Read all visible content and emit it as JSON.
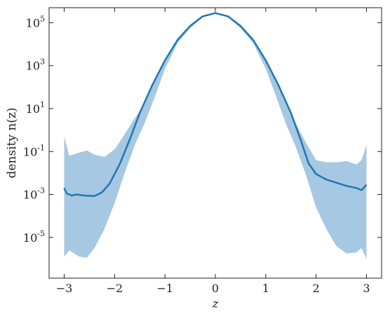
{
  "chart_data": {
    "type": "line",
    "title": "",
    "xlabel": "z",
    "ylabel": "density n(z)",
    "xlim": [
      -3.3,
      3.3
    ],
    "ylim_log10": [
      -6.9,
      5.7
    ],
    "yscale": "log",
    "grid": false,
    "legend": "none",
    "x_ticks": [
      -3,
      -2,
      -1,
      0,
      1,
      2,
      3
    ],
    "x_tick_labels": [
      "−3",
      "−2",
      "−1",
      "0",
      "1",
      "2",
      "3"
    ],
    "y_ticks_log10": [
      5,
      3,
      1,
      -1,
      -3,
      -5
    ],
    "y_tick_bases": [
      "10",
      "10",
      "10",
      "10",
      "10",
      "10"
    ],
    "y_tick_exponents": [
      "5",
      "3",
      "1",
      "-1",
      "-3",
      "-5"
    ],
    "colors": {
      "line": "#1f77b4",
      "band": "#a6c8e2"
    },
    "series": [
      {
        "values_log10": [
          [
            -3.0,
            -2.7
          ],
          [
            -2.95,
            -2.95
          ],
          [
            -2.85,
            -3.05
          ],
          [
            -2.75,
            -3.0
          ],
          [
            -2.6,
            -3.05
          ],
          [
            -2.4,
            -3.07
          ],
          [
            -2.25,
            -2.9
          ],
          [
            -2.1,
            -2.5
          ],
          [
            -1.9,
            -1.6
          ],
          [
            -1.7,
            -0.45
          ],
          [
            -1.5,
            0.8
          ],
          [
            -1.25,
            2.1
          ],
          [
            -1.0,
            3.25
          ],
          [
            -0.75,
            4.2
          ],
          [
            -0.5,
            4.85
          ],
          [
            -0.25,
            5.3
          ],
          [
            0.0,
            5.45
          ],
          [
            0.25,
            5.3
          ],
          [
            0.5,
            4.85
          ],
          [
            0.75,
            4.2
          ],
          [
            1.0,
            3.25
          ],
          [
            1.25,
            2.1
          ],
          [
            1.5,
            0.8
          ],
          [
            1.7,
            -0.5
          ],
          [
            1.85,
            -1.55
          ],
          [
            2.0,
            -2.05
          ],
          [
            2.2,
            -2.3
          ],
          [
            2.4,
            -2.45
          ],
          [
            2.6,
            -2.6
          ],
          [
            2.8,
            -2.7
          ],
          [
            2.9,
            -2.8
          ],
          [
            3.0,
            -2.55
          ]
        ]
      }
    ],
    "band_log10": [
      [
        -3.0,
        -0.3,
        -5.9
      ],
      [
        -2.9,
        -1.2,
        -5.6
      ],
      [
        -2.7,
        -1.05,
        -5.9
      ],
      [
        -2.55,
        -0.95,
        -5.95
      ],
      [
        -2.4,
        -1.15,
        -5.5
      ],
      [
        -2.2,
        -1.25,
        -4.6
      ],
      [
        -2.0,
        -0.9,
        -3.4
      ],
      [
        -1.8,
        -0.2,
        -2.0
      ],
      [
        -1.6,
        0.55,
        -0.7
      ],
      [
        -1.4,
        1.25,
        0.35
      ],
      [
        -1.2,
        2.3,
        1.55
      ],
      [
        -1.0,
        3.25,
        2.85
      ],
      [
        -0.75,
        4.2,
        4.05
      ],
      [
        -0.5,
        4.85,
        4.75
      ],
      [
        -0.25,
        5.3,
        5.25
      ],
      [
        0.0,
        5.45,
        5.42
      ],
      [
        0.25,
        5.3,
        5.25
      ],
      [
        0.5,
        4.85,
        4.75
      ],
      [
        0.75,
        4.2,
        4.05
      ],
      [
        1.0,
        3.25,
        2.85
      ],
      [
        1.2,
        2.3,
        1.6
      ],
      [
        1.4,
        1.3,
        0.3
      ],
      [
        1.6,
        0.3,
        -0.8
      ],
      [
        1.8,
        -0.6,
        -2.1
      ],
      [
        2.0,
        -1.4,
        -3.6
      ],
      [
        2.2,
        -1.5,
        -4.6
      ],
      [
        2.4,
        -1.5,
        -5.4
      ],
      [
        2.6,
        -1.45,
        -5.75
      ],
      [
        2.8,
        -1.6,
        -5.7
      ],
      [
        2.9,
        -1.4,
        -5.5
      ],
      [
        3.0,
        -0.7,
        -6.0
      ]
    ]
  }
}
